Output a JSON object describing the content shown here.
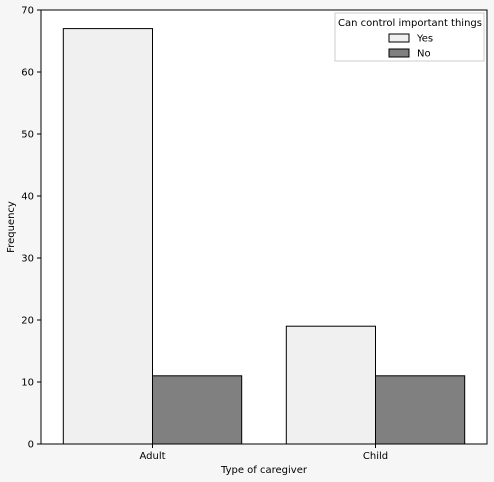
{
  "chart_data": {
    "type": "bar",
    "xlabel": "Type of caregiver",
    "ylabel": "Frequency",
    "categories": [
      "Adult",
      "Child"
    ],
    "ylim": [
      0,
      70
    ],
    "yticks": [
      0,
      10,
      20,
      30,
      40,
      50,
      60,
      70
    ],
    "grid": false,
    "legend": {
      "title": "Can control important things",
      "position": "top-right"
    },
    "series": [
      {
        "name": "Yes",
        "color": "#f0f0f0",
        "values": [
          67,
          19
        ]
      },
      {
        "name": "No",
        "color": "#808080",
        "values": [
          11,
          11
        ]
      }
    ]
  }
}
